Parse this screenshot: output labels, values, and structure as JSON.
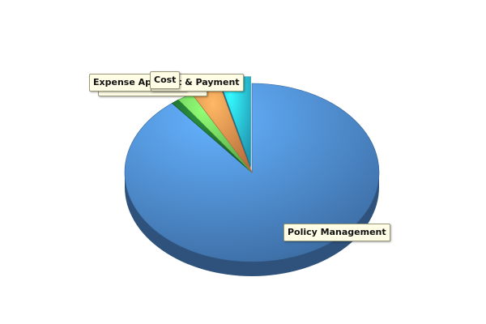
{
  "chart_data": {
    "type": "pie",
    "three_d": true,
    "title": "",
    "exploded": [
      "Cost"
    ],
    "slices": [
      {
        "label": "Policy Management",
        "value": 89.2,
        "color": "#4a84c8"
      },
      {
        "label": "Expense Approval",
        "value": 1.0,
        "color": "#1e6b2e"
      },
      {
        "label": "Expense Entry Process",
        "value": 2.0,
        "color": "#6ccf58"
      },
      {
        "label": "Audit & Payment",
        "value": 3.8,
        "color": "#e5884a"
      },
      {
        "label": "Cost",
        "value": 4.0,
        "color": "#27b9dc"
      }
    ],
    "labels_shown": [
      {
        "text": "Policy Management"
      },
      {
        "text": "Expense Approval"
      },
      {
        "text": "Expense Entry Process"
      },
      {
        "text": "Audit & Payment"
      },
      {
        "text": "Cost"
      }
    ]
  }
}
